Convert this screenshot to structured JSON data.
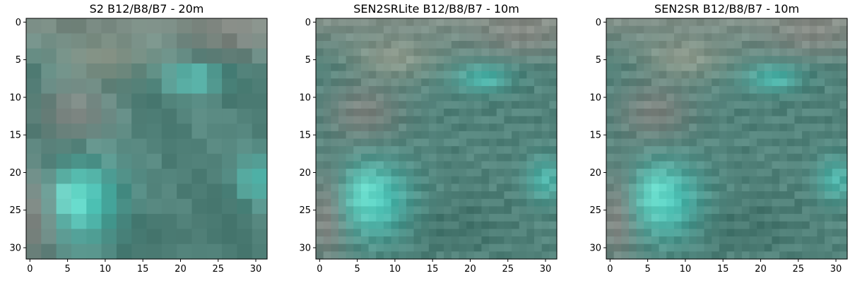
{
  "chart_data": [
    {
      "type": "heatmap",
      "title": "S2 B12/B8/B7 - 20m",
      "grid_size": 32,
      "block": 2,
      "xlim": [
        -0.5,
        31.5
      ],
      "ylim": [
        31.5,
        -0.5
      ],
      "xticks": [
        0,
        5,
        10,
        15,
        20,
        25,
        30
      ],
      "yticks": [
        0,
        5,
        10,
        15,
        20,
        25,
        30
      ],
      "grid": false,
      "image_content": "false-color composite (B12/B8/B7) of a vegetated surface with a bright cyan patch in the lower-left and scattered reddish bare soil at the top"
    },
    {
      "type": "heatmap",
      "title": "SEN2SRLite B12/B8/B7 - 10m",
      "grid_size": 32,
      "block": 1,
      "xlim": [
        -0.5,
        31.5
      ],
      "ylim": [
        31.5,
        -0.5
      ],
      "xticks": [
        0,
        5,
        10,
        15,
        20,
        25,
        30
      ],
      "yticks": [
        0,
        5,
        10,
        15,
        20,
        25,
        30
      ],
      "grid": false
    },
    {
      "type": "heatmap",
      "title": "SEN2SR B12/B8/B7 - 10m",
      "grid_size": 32,
      "block": 1,
      "xlim": [
        -0.5,
        31.5
      ],
      "ylim": [
        31.5,
        -0.5
      ],
      "xticks": [
        0,
        5,
        10,
        15,
        20,
        25,
        30
      ],
      "yticks": [
        0,
        5,
        10,
        15,
        20,
        25,
        30
      ],
      "grid": false
    }
  ],
  "colors": {
    "base": "#5a8a82",
    "dark": "#3f6e66",
    "cyan": "#4fe0d4",
    "bright_cyan": "#7ff7e4",
    "pink": "#b48a8a",
    "tan": "#c8b4a0",
    "gray": "#9a9a92"
  }
}
